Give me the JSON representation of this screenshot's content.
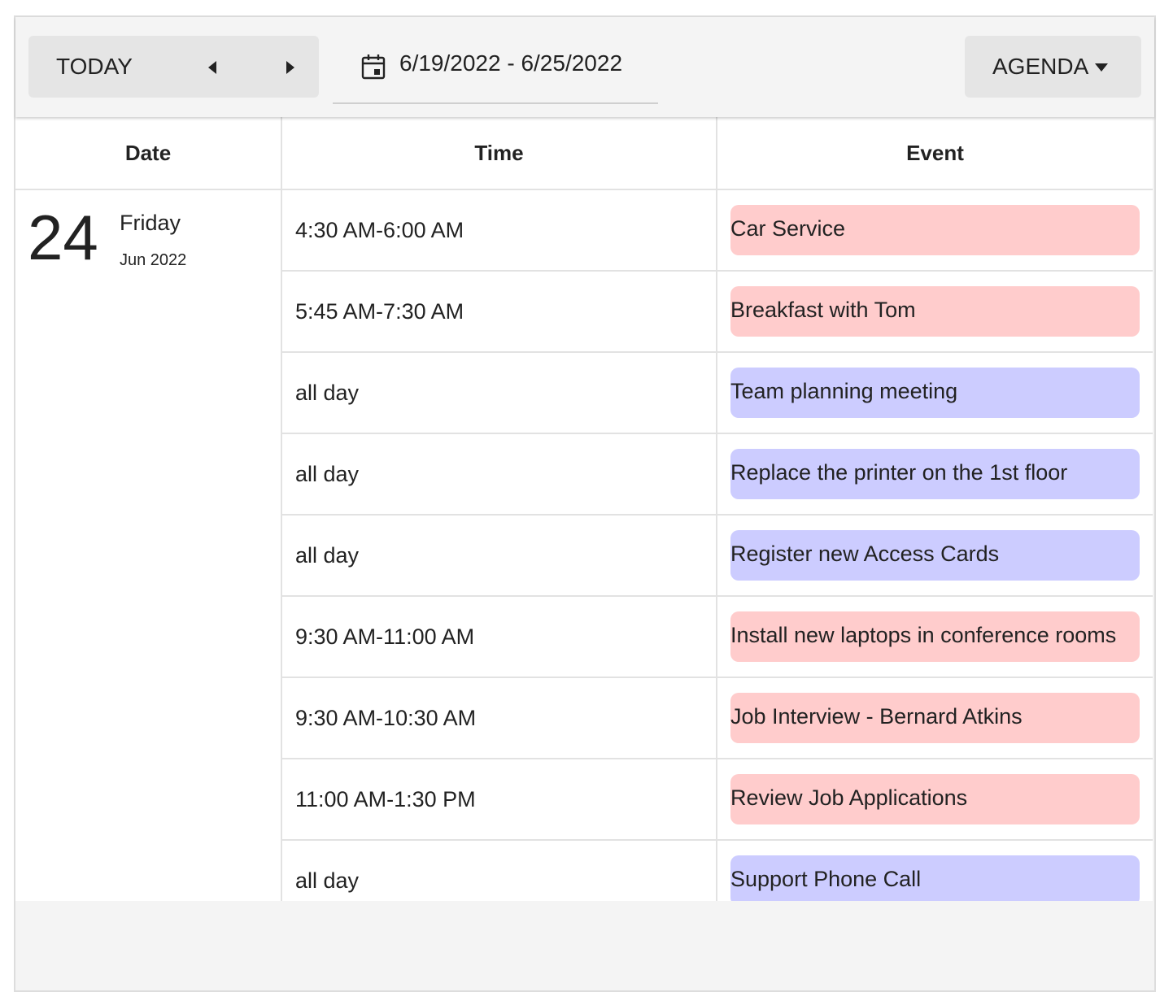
{
  "toolbar": {
    "today_label": "TODAY",
    "prev_icon": "caret-left-icon",
    "next_icon": "caret-right-icon",
    "calendar_icon": "calendar-icon",
    "date_range": "6/19/2022 - 6/25/2022",
    "view_label": "AGENDA",
    "view_dropdown_icon": "caret-down-icon"
  },
  "agenda": {
    "columns": {
      "date": "Date",
      "time": "Time",
      "event": "Event"
    },
    "day": {
      "number": "24",
      "weekday": "Friday",
      "month_year": "Jun 2022"
    },
    "rows": [
      {
        "time": "4:30 AM-6:00 AM",
        "title": "Car Service",
        "color": "#ffcccc"
      },
      {
        "time": "5:45 AM-7:30 AM",
        "title": "Breakfast with Tom",
        "color": "#ffcccc"
      },
      {
        "time": "all day",
        "title": "Team planning meeting",
        "color": "#ccccff"
      },
      {
        "time": "all day",
        "title": "Replace the printer on the 1st floor",
        "color": "#ccccff"
      },
      {
        "time": "all day",
        "title": "Register new Access Cards",
        "color": "#ccccff"
      },
      {
        "time": "9:30 AM-11:00 AM",
        "title": "Install new laptops in conference rooms",
        "color": "#ffcccc"
      },
      {
        "time": "9:30 AM-10:30 AM",
        "title": "Job Interview - Bernard Atkins",
        "color": "#ffcccc"
      },
      {
        "time": "11:00 AM-1:30 PM",
        "title": "Review Job Applications",
        "color": "#ffcccc"
      },
      {
        "time": "all day",
        "title": "Support Phone Call",
        "color": "#ccccff"
      }
    ]
  }
}
